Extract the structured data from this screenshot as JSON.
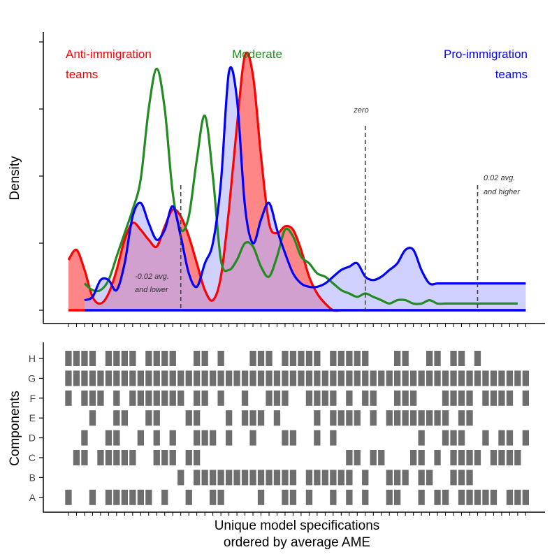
{
  "chart_data": [
    {
      "type": "area",
      "ylabel": "Density",
      "series": [
        {
          "name": "Anti-immigration teams",
          "color": "#ff0000",
          "fill": "#ff8080",
          "x": [
            1,
            2,
            3,
            4,
            5,
            6,
            7,
            8,
            9,
            10,
            11,
            12,
            13,
            14,
            15,
            16,
            17,
            18,
            19,
            20,
            21,
            22,
            23,
            24,
            25,
            26,
            27,
            28,
            29,
            30,
            31,
            32,
            33,
            34,
            35,
            36,
            37,
            38,
            39,
            40,
            41,
            42,
            43,
            44,
            45,
            46,
            47,
            48,
            49,
            50,
            51,
            52,
            53,
            54,
            55,
            56,
            57,
            58
          ],
          "y": [
            0.15,
            0.18,
            0.12,
            0.04,
            0.02,
            0.05,
            0.12,
            0.21,
            0.26,
            0.24,
            0.21,
            0.19,
            0.25,
            0.3,
            0.28,
            0.22,
            0.14,
            0.06,
            0.03,
            0.1,
            0.3,
            0.55,
            0.76,
            0.7,
            0.46,
            0.26,
            0.23,
            0.25,
            0.24,
            0.18,
            0.1,
            0.05,
            0.02,
            0,
            0,
            0,
            0,
            0,
            0,
            0,
            0,
            0,
            0,
            0,
            0,
            0,
            0,
            0,
            0,
            0,
            0,
            0,
            0,
            0,
            0,
            0,
            0,
            0
          ]
        },
        {
          "name": "Moderate",
          "color": "#228b22",
          "x": [
            3,
            4,
            5,
            6,
            7,
            8,
            9,
            10,
            11,
            12,
            13,
            14,
            15,
            16,
            17,
            18,
            19,
            20,
            21,
            22,
            23,
            24,
            25,
            26,
            27,
            28,
            29,
            30,
            31,
            32,
            33,
            34,
            35,
            36,
            37,
            38,
            39,
            40,
            41,
            42,
            43,
            44,
            45,
            46,
            47,
            48,
            49,
            50,
            51,
            52,
            53,
            54,
            55,
            56,
            57
          ],
          "y": [
            0.08,
            0.06,
            0.06,
            0.09,
            0.16,
            0.23,
            0.3,
            0.39,
            0.6,
            0.72,
            0.6,
            0.35,
            0.24,
            0.28,
            0.45,
            0.58,
            0.4,
            0.15,
            0.12,
            0.15,
            0.2,
            0.19,
            0.13,
            0.1,
            0.16,
            0.24,
            0.22,
            0.16,
            0.14,
            0.11,
            0.1,
            0.08,
            0.06,
            0.05,
            0.04,
            0.05,
            0.04,
            0.03,
            0.02,
            0.03,
            0.03,
            0.02,
            0.02,
            0.03,
            0.02,
            0.02,
            0.02,
            0.02,
            0.02,
            0.02,
            0.02,
            0.02,
            0.02,
            0.02,
            0.02
          ]
        },
        {
          "name": "Pro-immigration teams",
          "color": "#0000ff",
          "fill": "#b3b3ff",
          "x": [
            3,
            4,
            5,
            6,
            7,
            8,
            9,
            10,
            11,
            12,
            13,
            14,
            15,
            16,
            17,
            18,
            19,
            20,
            21,
            22,
            23,
            24,
            25,
            26,
            27,
            28,
            29,
            30,
            31,
            32,
            33,
            34,
            35,
            36,
            37,
            38,
            39,
            40,
            41,
            42,
            43,
            44,
            45,
            46,
            47,
            48,
            49,
            50,
            51,
            52,
            53,
            54,
            55,
            56,
            57,
            58
          ],
          "y": [
            0.03,
            0.04,
            0.09,
            0.09,
            0.06,
            0.14,
            0.28,
            0.32,
            0.26,
            0.21,
            0.24,
            0.31,
            0.22,
            0.11,
            0.07,
            0.14,
            0.2,
            0.38,
            0.71,
            0.63,
            0.31,
            0.2,
            0.27,
            0.32,
            0.24,
            0.17,
            0.11,
            0.08,
            0.07,
            0.07,
            0.08,
            0.1,
            0.12,
            0.13,
            0.14,
            0.1,
            0.09,
            0.1,
            0.12,
            0.14,
            0.18,
            0.18,
            0.12,
            0.08,
            0.08,
            0.08,
            0.08,
            0.08,
            0.08,
            0.08,
            0.08,
            0.08,
            0.08,
            0.08,
            0.08,
            0.08
          ]
        }
      ],
      "annotations": [
        {
          "text": "zero",
          "x": 38
        },
        {
          "text": "-0.02 avg. and lower",
          "x": 15
        },
        {
          "text": "0.02 avg. and higher",
          "x": 52
        }
      ],
      "legend": "labels inside plot: top-left, top-center, top-right"
    },
    {
      "type": "heatmap",
      "xlabel": "Unique model specifications ordered by average AME",
      "ylabel": "Components",
      "rows": [
        "H",
        "G",
        "F",
        "E",
        "D",
        "C",
        "B",
        "A"
      ],
      "n_columns": 58,
      "cells": {
        "H": [
          1,
          2,
          3,
          4,
          6,
          7,
          8,
          9,
          11,
          12,
          13,
          14,
          17,
          18,
          20,
          24,
          25,
          26,
          28,
          29,
          30,
          31,
          32,
          34,
          35,
          36,
          37,
          38,
          42,
          43,
          46,
          47,
          49,
          50,
          52
        ],
        "G": [
          1,
          2,
          3,
          4,
          5,
          6,
          7,
          8,
          9,
          10,
          11,
          12,
          13,
          14,
          15,
          16,
          17,
          18,
          19,
          20,
          21,
          22,
          23,
          24,
          25,
          26,
          27,
          28,
          29,
          30,
          31,
          32,
          33,
          34,
          35,
          36,
          37,
          38,
          39,
          40,
          41,
          42,
          43,
          44,
          45,
          46,
          47,
          48,
          49,
          50,
          51,
          52,
          53,
          54,
          55,
          56,
          57,
          58
        ],
        "F": [
          1,
          3,
          4,
          5,
          7,
          9,
          10,
          11,
          12,
          13,
          14,
          15,
          17,
          18,
          20,
          23,
          26,
          27,
          28,
          31,
          32,
          33,
          34,
          36,
          38,
          39,
          42,
          43,
          44,
          48,
          49,
          50,
          51,
          53,
          54,
          55,
          56,
          58
        ],
        "E": [
          4,
          7,
          8,
          11,
          12,
          16,
          17,
          21,
          23,
          24,
          25,
          27,
          32,
          34,
          35,
          36,
          37,
          39,
          41,
          42,
          43,
          44,
          45,
          46,
          47,
          48,
          50,
          51
        ],
        "D": [
          3,
          6,
          7,
          10,
          12,
          14,
          17,
          18,
          19,
          21,
          24,
          28,
          29,
          32,
          34,
          45,
          48,
          49,
          50,
          53,
          55,
          56,
          58
        ],
        "C": [
          2,
          3,
          5,
          6,
          7,
          8,
          9,
          12,
          13,
          14,
          16,
          17,
          36,
          37,
          39,
          40,
          44,
          45,
          47,
          49,
          50,
          51,
          52,
          54,
          55,
          56,
          57
        ],
        "B": [
          15,
          17,
          18,
          19,
          20,
          21,
          22,
          23,
          24,
          25,
          26,
          27,
          28,
          29,
          31,
          32,
          33,
          34,
          35,
          36,
          38,
          41,
          42,
          43,
          45,
          46,
          49,
          50,
          51
        ],
        "A": [
          1,
          4,
          6,
          7,
          8,
          9,
          10,
          11,
          13,
          16,
          19,
          20,
          25,
          28,
          29,
          31,
          34,
          36,
          38,
          41,
          42,
          45,
          47,
          48,
          50,
          51,
          52,
          53,
          54,
          56,
          57,
          58
        ]
      }
    }
  ],
  "labels": {
    "density": "Density",
    "components": "Components",
    "anti_1": "Anti-immigration",
    "anti_2": "teams",
    "moderate": "Moderate",
    "pro_1": "Pro-immigration",
    "pro_2": "teams",
    "zero": "zero",
    "low_1": "-0.02 avg.",
    "low_2": "and lower",
    "high_1": "0.02 avg.",
    "high_2": "and higher",
    "xlabel_1": "Unique model specifications",
    "xlabel_2": "ordered by average AME"
  }
}
